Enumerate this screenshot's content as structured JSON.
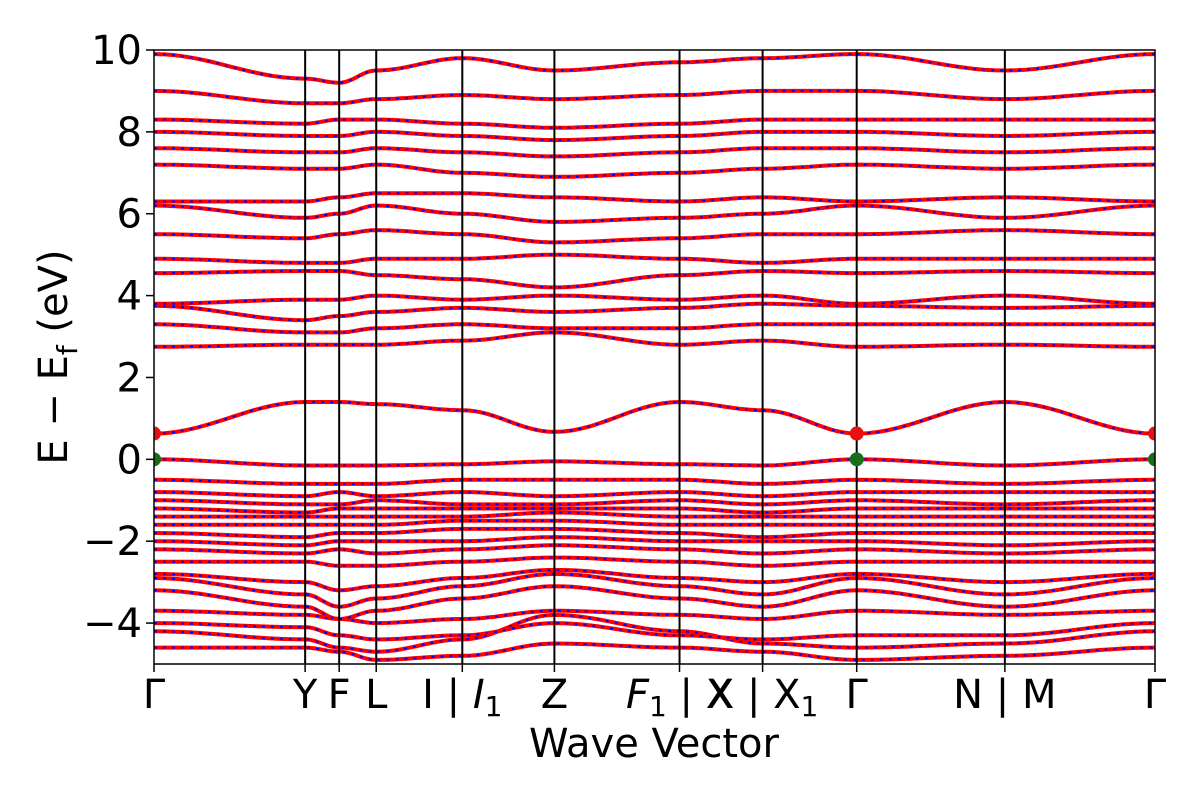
{
  "chart_data": {
    "type": "line",
    "title": "",
    "xlabel": "Wave Vector",
    "ylabel": "E − E",
    "ylabel_sub": "f",
    "ylabel_unit": "(eV)",
    "ylim": [
      -5,
      10
    ],
    "yticks": [
      -4,
      -2,
      0,
      2,
      4,
      6,
      8,
      10
    ],
    "ytick_labels": [
      "−4",
      "−2",
      "0",
      "2",
      "4",
      "6",
      "8",
      "10"
    ],
    "grid": false,
    "legend": "none",
    "x_range": [
      0,
      1
    ],
    "kpoints": [
      {
        "x": 0.0,
        "text": "Γ",
        "sub": ""
      },
      {
        "x": 0.151,
        "text": "Y",
        "sub": ""
      },
      {
        "x": 0.185,
        "text": "F",
        "sub": ""
      },
      {
        "x": 0.222,
        "text": "L",
        "sub": ""
      },
      {
        "x": 0.308,
        "text": "I | I",
        "sub": "1",
        "italic_after": 4
      },
      {
        "x": 0.4,
        "text": "Z",
        "sub": ""
      },
      {
        "x": 0.525,
        "text": "F | X",
        "sub": "1",
        "italic_first": true
      },
      {
        "x": 0.608,
        "text": "X | X",
        "sub": "1"
      },
      {
        "x": 0.702,
        "text": "Γ",
        "sub": ""
      },
      {
        "x": 0.85,
        "text": "N | M",
        "sub": ""
      },
      {
        "x": 1.0,
        "text": "Γ",
        "sub": ""
      }
    ],
    "vlines": [
      0.151,
      0.185,
      0.222,
      0.308,
      0.4,
      0.525,
      0.608,
      0.702,
      0.85
    ],
    "series_styles": {
      "spin_up": {
        "color": "#ff0000",
        "style": "solid",
        "width": 4
      },
      "spin_down": {
        "color": "#0000ff",
        "style": "dashed",
        "width": 2
      }
    },
    "band_markers": [
      {
        "x": 0.0,
        "y": 0.63,
        "color": "#e81010",
        "label": "CBM"
      },
      {
        "x": 0.702,
        "y": 0.63,
        "color": "#e81010",
        "label": "CBM"
      },
      {
        "x": 1.0,
        "y": 0.63,
        "color": "#e81010",
        "label": "CBM"
      },
      {
        "x": 0.0,
        "y": 0.0,
        "color": "#1a6e1a",
        "label": "VBM"
      },
      {
        "x": 0.702,
        "y": 0.0,
        "color": "#1a6e1a",
        "label": "VBM"
      },
      {
        "x": 1.0,
        "y": 0.0,
        "color": "#1a6e1a",
        "label": "VBM"
      }
    ],
    "band_anchors": [
      [
        -4.6,
        -4.6,
        -4.7,
        -4.9,
        -4.8,
        -4.5,
        -4.6,
        -4.7,
        -4.9,
        -4.8,
        -4.6
      ],
      [
        -4.2,
        -4.4,
        -4.6,
        -4.7,
        -4.4,
        -3.8,
        -4.2,
        -4.5,
        -4.6,
        -4.5,
        -4.2
      ],
      [
        -4.0,
        -4.1,
        -4.3,
        -4.4,
        -4.3,
        -4.0,
        -4.3,
        -4.4,
        -4.3,
        -4.3,
        -4.0
      ],
      [
        -3.7,
        -3.8,
        -3.9,
        -4.0,
        -3.9,
        -3.7,
        -3.8,
        -3.9,
        -3.7,
        -3.8,
        -3.7
      ],
      [
        -3.2,
        -3.6,
        -3.9,
        -3.7,
        -3.4,
        -3.1,
        -3.4,
        -3.6,
        -3.2,
        -3.6,
        -3.2
      ],
      [
        -2.9,
        -3.3,
        -3.6,
        -3.4,
        -3.1,
        -2.8,
        -3.1,
        -3.3,
        -2.9,
        -3.3,
        -2.9
      ],
      [
        -2.8,
        -3.0,
        -3.2,
        -3.1,
        -2.9,
        -2.7,
        -2.9,
        -3.0,
        -2.8,
        -3.0,
        -2.8
      ],
      [
        -2.5,
        -2.5,
        -2.6,
        -2.6,
        -2.5,
        -2.4,
        -2.5,
        -2.6,
        -2.5,
        -2.5,
        -2.5
      ],
      [
        -2.2,
        -2.3,
        -2.2,
        -2.3,
        -2.2,
        -2.1,
        -2.2,
        -2.3,
        -2.2,
        -2.3,
        -2.2
      ],
      [
        -2.0,
        -2.1,
        -2.0,
        -2.0,
        -2.0,
        -1.9,
        -2.0,
        -2.0,
        -2.0,
        -2.1,
        -2.0
      ],
      [
        -1.8,
        -1.9,
        -1.8,
        -1.8,
        -1.7,
        -1.7,
        -1.8,
        -1.9,
        -1.8,
        -1.8,
        -1.8
      ],
      [
        -1.6,
        -1.6,
        -1.6,
        -1.6,
        -1.5,
        -1.5,
        -1.6,
        -1.6,
        -1.6,
        -1.6,
        -1.6
      ],
      [
        -1.4,
        -1.4,
        -1.4,
        -1.4,
        -1.4,
        -1.3,
        -1.4,
        -1.4,
        -1.4,
        -1.4,
        -1.4
      ],
      [
        -1.2,
        -1.3,
        -1.2,
        -1.2,
        -1.2,
        -1.2,
        -1.2,
        -1.3,
        -1.2,
        -1.2,
        -1.2
      ],
      [
        -1.0,
        -1.1,
        -1.1,
        -1.0,
        -1.1,
        -1.1,
        -1.0,
        -1.1,
        -1.0,
        -1.1,
        -1.0
      ],
      [
        -0.8,
        -0.9,
        -0.8,
        -0.9,
        -0.8,
        -0.9,
        -0.8,
        -0.9,
        -0.8,
        -0.8,
        -0.8
      ],
      [
        -0.5,
        -0.6,
        -0.6,
        -0.6,
        -0.5,
        -0.5,
        -0.5,
        -0.6,
        -0.5,
        -0.6,
        -0.5
      ],
      [
        0.0,
        -0.15,
        -0.15,
        -0.15,
        -0.12,
        -0.05,
        -0.12,
        -0.15,
        0.0,
        -0.15,
        0.0
      ],
      [
        0.63,
        1.4,
        1.4,
        1.35,
        1.2,
        0.67,
        1.4,
        1.2,
        0.63,
        1.4,
        0.63
      ],
      [
        2.75,
        2.8,
        2.8,
        2.8,
        2.9,
        3.1,
        2.8,
        2.9,
        2.75,
        2.8,
        2.75
      ],
      [
        3.3,
        3.1,
        3.1,
        3.2,
        3.3,
        3.2,
        3.2,
        3.3,
        3.3,
        3.3,
        3.3
      ],
      [
        3.75,
        3.4,
        3.5,
        3.6,
        3.7,
        3.6,
        3.7,
        3.8,
        3.75,
        3.7,
        3.75
      ],
      [
        3.8,
        3.9,
        3.9,
        4.0,
        3.9,
        4.0,
        3.9,
        4.0,
        3.8,
        4.0,
        3.8
      ],
      [
        4.55,
        4.6,
        4.6,
        4.5,
        4.4,
        4.2,
        4.5,
        4.6,
        4.55,
        4.6,
        4.55
      ],
      [
        4.9,
        4.8,
        4.8,
        4.9,
        4.9,
        5.0,
        4.9,
        4.8,
        4.9,
        4.9,
        4.9
      ],
      [
        5.5,
        5.4,
        5.5,
        5.6,
        5.5,
        5.3,
        5.4,
        5.5,
        5.5,
        5.6,
        5.5
      ],
      [
        6.2,
        5.9,
        6.0,
        6.2,
        6.0,
        5.8,
        5.9,
        6.0,
        6.2,
        5.9,
        6.2
      ],
      [
        6.3,
        6.3,
        6.4,
        6.5,
        6.5,
        6.4,
        6.3,
        6.4,
        6.3,
        6.4,
        6.3
      ],
      [
        7.2,
        7.1,
        7.1,
        7.2,
        7.0,
        6.9,
        7.0,
        7.1,
        7.2,
        7.1,
        7.2
      ],
      [
        7.6,
        7.5,
        7.5,
        7.6,
        7.5,
        7.4,
        7.5,
        7.6,
        7.6,
        7.5,
        7.6
      ],
      [
        8.0,
        7.9,
        7.9,
        8.0,
        7.9,
        7.8,
        7.9,
        8.0,
        8.0,
        7.9,
        8.0
      ],
      [
        8.3,
        8.2,
        8.3,
        8.3,
        8.2,
        8.1,
        8.2,
        8.3,
        8.3,
        8.3,
        8.3
      ],
      [
        9.0,
        8.7,
        8.7,
        8.8,
        8.9,
        8.8,
        8.9,
        9.0,
        9.0,
        8.8,
        9.0
      ],
      [
        9.9,
        9.3,
        9.2,
        9.5,
        9.8,
        9.5,
        9.7,
        9.8,
        9.9,
        9.5,
        9.9
      ]
    ],
    "band_anchor_x": [
      0.0,
      0.151,
      0.185,
      0.222,
      0.308,
      0.4,
      0.525,
      0.608,
      0.702,
      0.85,
      1.0
    ]
  }
}
